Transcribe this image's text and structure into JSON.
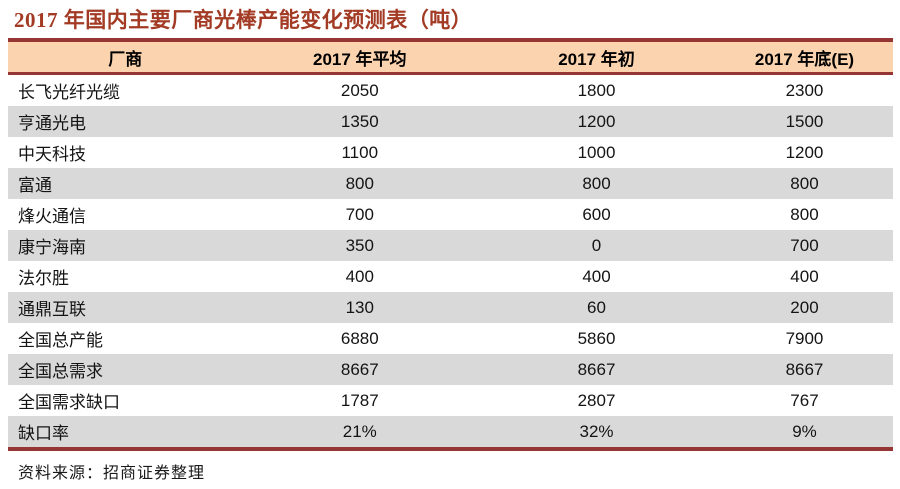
{
  "colors": {
    "rule_red": "#963634",
    "title_red": "#A23A24",
    "header_bg": "#FBD3AE",
    "stripe_gray": "#D9D9D9",
    "text": "#141414"
  },
  "chart_data": {
    "type": "table",
    "title": "2017 年国内主要厂商光棒产能变化预测表（吨）",
    "columns": [
      "厂商",
      "2017 年平均",
      "2017 年初",
      "2017 年底(E)"
    ],
    "rows": [
      [
        "长飞光纤光缆",
        "2050",
        "1800",
        "2300"
      ],
      [
        "亨通光电",
        "1350",
        "1200",
        "1500"
      ],
      [
        "中天科技",
        "1100",
        "1000",
        "1200"
      ],
      [
        "富通",
        "800",
        "800",
        "800"
      ],
      [
        "烽火通信",
        "700",
        "600",
        "800"
      ],
      [
        "康宁海南",
        "350",
        "0",
        "700"
      ],
      [
        "法尔胜",
        "400",
        "400",
        "400"
      ],
      [
        "通鼎互联",
        "130",
        "60",
        "200"
      ],
      [
        "全国总产能",
        "6880",
        "5860",
        "7900"
      ],
      [
        "全国总需求",
        "8667",
        "8667",
        "8667"
      ],
      [
        "全国需求缺口",
        "1787",
        "2807",
        "767"
      ],
      [
        "缺口率",
        "21%",
        "32%",
        "9%"
      ]
    ],
    "source": "资料来源：招商证券整理",
    "layout": {
      "zebra_stripes": true,
      "first_column_align": "left",
      "value_columns_align": "center"
    }
  }
}
